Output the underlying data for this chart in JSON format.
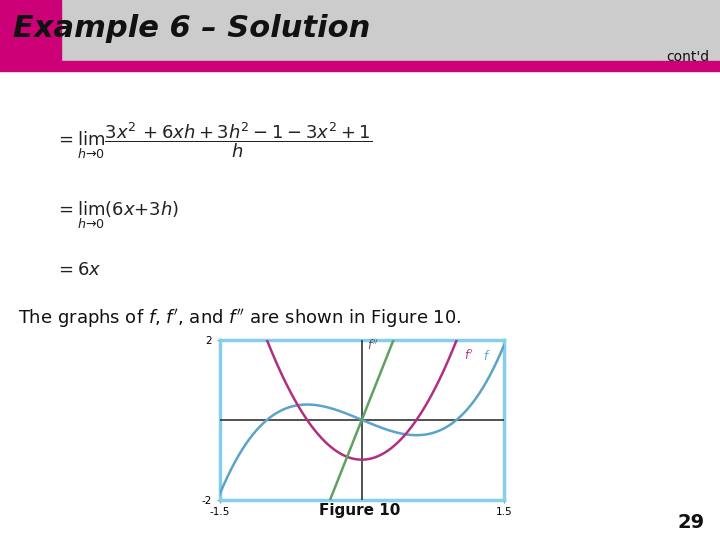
{
  "title": "Example 6 – Solution",
  "contd": "cont'd",
  "bg_color": "#ffffff",
  "header_bg": "#cccccc",
  "header_accent": "#cc0077",
  "header_text_color": "#111111",
  "title_fontsize": 22,
  "page_number": "29",
  "figure_caption": "Figure 10",
  "graph_xlim": [
    -1.5,
    1.5
  ],
  "graph_ylim": [
    -2,
    2
  ],
  "f_color": "#5ba3c9",
  "fprime_color": "#b03080",
  "fdoubleprime_color": "#60a060",
  "graph_border_color": "#87ceeb",
  "caption_text": "The graphs of $f$, $f'$, and $f''$ are shown in Figure 10."
}
